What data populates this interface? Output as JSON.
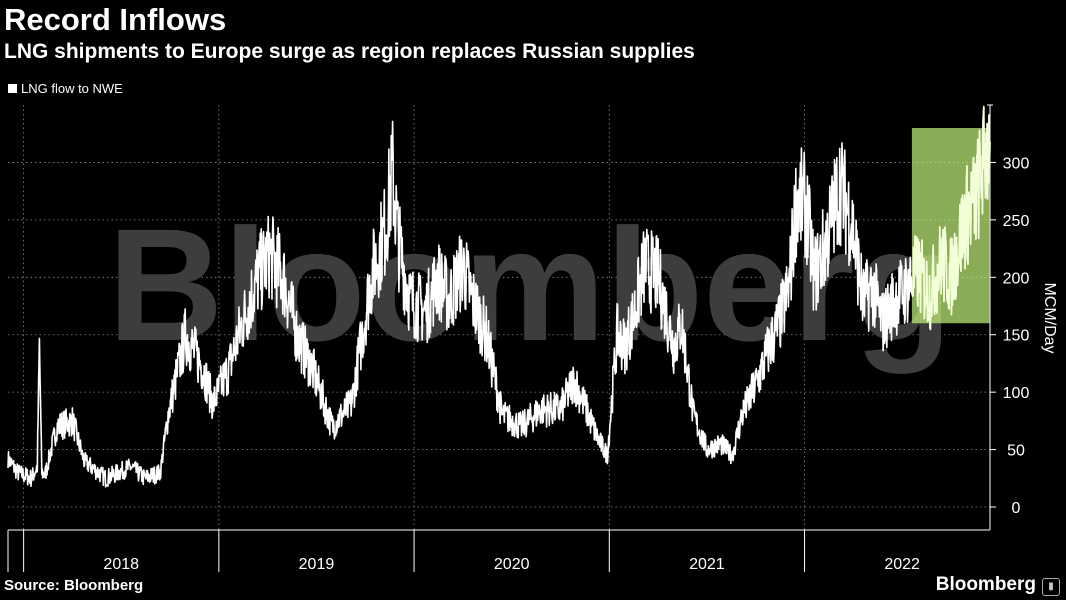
{
  "chart_data": {
    "type": "line",
    "title": "Record Inflows",
    "subtitle": "LNG shipments to Europe surge as region replaces Russian supplies",
    "ylabel": "MCM/Day",
    "ylim": [
      -20,
      350
    ],
    "y_ticks": [
      0,
      50,
      100,
      150,
      200,
      250,
      300
    ],
    "year_labels": [
      "2018",
      "2019",
      "2020",
      "2021",
      "2022"
    ],
    "x_range": [
      2017.92,
      2022.95
    ],
    "highlight": {
      "x_start": 2022.55,
      "x_end": 2022.95,
      "y_start": 160,
      "y_end": 330,
      "color": "#c6f57a"
    },
    "series": [
      {
        "name": "LNG flow to NWE",
        "color": "#ffffff",
        "anchors": [
          [
            2017.92,
            42
          ],
          [
            2017.97,
            30
          ],
          [
            2018.04,
            25
          ],
          [
            2018.07,
            35
          ],
          [
            2018.081,
            140
          ],
          [
            2018.093,
            30
          ],
          [
            2018.11,
            28
          ],
          [
            2018.17,
            70
          ],
          [
            2018.25,
            75
          ],
          [
            2018.31,
            40
          ],
          [
            2018.42,
            25
          ],
          [
            2018.55,
            35
          ],
          [
            2018.62,
            25
          ],
          [
            2018.7,
            30
          ],
          [
            2018.74,
            80
          ],
          [
            2018.83,
            150
          ],
          [
            2018.92,
            120
          ],
          [
            2018.97,
            90
          ],
          [
            2019.05,
            120
          ],
          [
            2019.12,
            160
          ],
          [
            2019.2,
            200
          ],
          [
            2019.26,
            220
          ],
          [
            2019.33,
            200
          ],
          [
            2019.4,
            150
          ],
          [
            2019.48,
            120
          ],
          [
            2019.58,
            70
          ],
          [
            2019.68,
            90
          ],
          [
            2019.78,
            200
          ],
          [
            2019.85,
            240
          ],
          [
            2019.89,
            290
          ],
          [
            2019.92,
            230
          ],
          [
            2019.98,
            180
          ],
          [
            2020.06,
            170
          ],
          [
            2020.12,
            200
          ],
          [
            2020.18,
            180
          ],
          [
            2020.25,
            210
          ],
          [
            2020.3,
            180
          ],
          [
            2020.37,
            150
          ],
          [
            2020.45,
            80
          ],
          [
            2020.55,
            70
          ],
          [
            2020.65,
            85
          ],
          [
            2020.75,
            85
          ],
          [
            2020.82,
            110
          ],
          [
            2020.87,
            90
          ],
          [
            2020.94,
            60
          ],
          [
            2020.99,
            45
          ],
          [
            2021.04,
            150
          ],
          [
            2021.08,
            140
          ],
          [
            2021.13,
            170
          ],
          [
            2021.18,
            210
          ],
          [
            2021.25,
            200
          ],
          [
            2021.33,
            140
          ],
          [
            2021.37,
            160
          ],
          [
            2021.43,
            80
          ],
          [
            2021.5,
            50
          ],
          [
            2021.57,
            55
          ],
          [
            2021.63,
            45
          ],
          [
            2021.68,
            80
          ],
          [
            2021.76,
            110
          ],
          [
            2021.82,
            140
          ],
          [
            2021.87,
            160
          ],
          [
            2021.92,
            190
          ],
          [
            2021.96,
            270
          ],
          [
            2022.01,
            260
          ],
          [
            2022.05,
            200
          ],
          [
            2022.11,
            230
          ],
          [
            2022.18,
            280
          ],
          [
            2022.24,
            250
          ],
          [
            2022.3,
            180
          ],
          [
            2022.35,
            190
          ],
          [
            2022.4,
            160
          ],
          [
            2022.46,
            180
          ],
          [
            2022.52,
            190
          ],
          [
            2022.58,
            205
          ],
          [
            2022.64,
            185
          ],
          [
            2022.7,
            215
          ],
          [
            2022.75,
            200
          ],
          [
            2022.82,
            250
          ],
          [
            2022.88,
            270
          ],
          [
            2022.93,
            310
          ],
          [
            2022.95,
            318
          ]
        ]
      }
    ]
  },
  "watermark": "Bloomberg",
  "footer": {
    "source": "Source: Bloomberg",
    "brand": "Bloomberg"
  },
  "colors": {
    "background": "#000000",
    "line": "#ffffff",
    "highlight": "#c6f57a",
    "grid": "#9a9a9a",
    "watermark": "#3d3d3d"
  }
}
